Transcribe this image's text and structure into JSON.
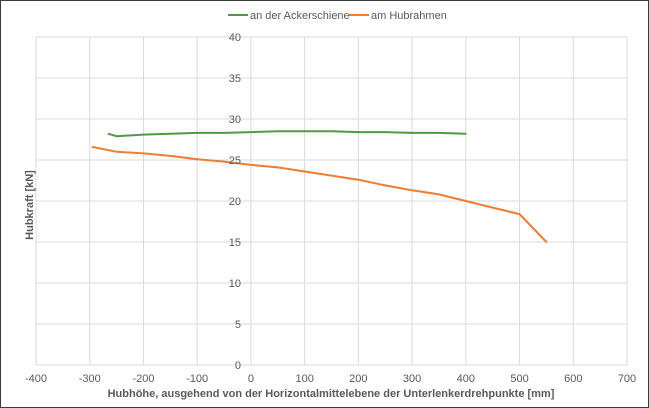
{
  "chart_data": {
    "type": "line",
    "xlabel": "Hubhöhe, ausgehend von der Horizontalmittelebene der Unterlenkerdrehpunkte [mm]",
    "ylabel": "Hubkraft [kN]",
    "xlim": [
      -400,
      700
    ],
    "ylim": [
      0,
      40
    ],
    "x_ticks": [
      -400,
      -300,
      -200,
      -100,
      0,
      100,
      200,
      300,
      400,
      500,
      600,
      700
    ],
    "y_ticks": [
      0,
      5,
      10,
      15,
      20,
      25,
      30,
      35,
      40
    ],
    "x_tick_labels": [
      "-400",
      "-300",
      "-200",
      "-100",
      "0",
      "100",
      "200",
      "300",
      "400",
      "500",
      "600",
      "700"
    ],
    "y_tick_labels": [
      "0",
      "5",
      "10",
      "15",
      "20",
      "25",
      "30",
      "35",
      "40"
    ],
    "grid": true,
    "legend_position": "top",
    "series": [
      {
        "name": "an der Ackerschiene",
        "color": "#4e9a40",
        "x": [
          -265,
          -250,
          -200,
          -150,
          -100,
          -50,
          0,
          50,
          100,
          150,
          200,
          250,
          300,
          350,
          400
        ],
        "y": [
          28.2,
          27.9,
          28.1,
          28.2,
          28.3,
          28.3,
          28.4,
          28.5,
          28.5,
          28.5,
          28.4,
          28.4,
          28.3,
          28.3,
          28.2
        ]
      },
      {
        "name": "am Hubrahmen",
        "color": "#ed7d31",
        "x": [
          -295,
          -250,
          -200,
          -150,
          -100,
          -50,
          0,
          50,
          100,
          150,
          200,
          250,
          300,
          350,
          400,
          450,
          500,
          550
        ],
        "y": [
          26.6,
          26.0,
          25.8,
          25.5,
          25.1,
          24.8,
          24.4,
          24.1,
          23.6,
          23.1,
          22.6,
          21.9,
          21.3,
          20.8,
          20.0,
          19.2,
          18.4,
          15.0
        ]
      }
    ]
  }
}
